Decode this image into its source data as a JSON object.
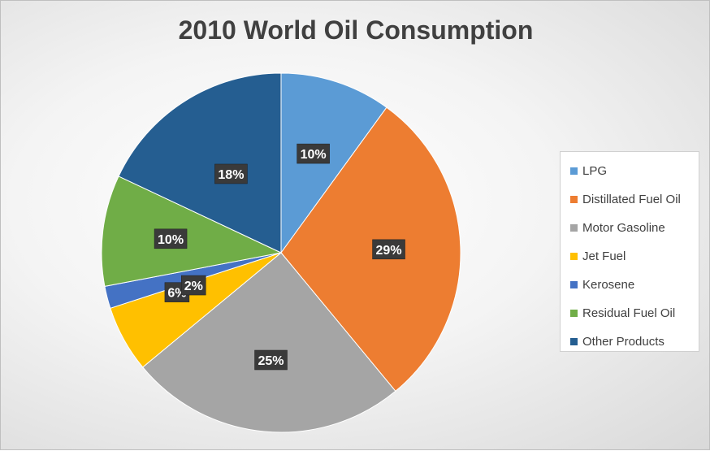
{
  "chart_data": {
    "type": "pie",
    "title": "2010 World Oil Consumption",
    "categories": [
      "LPG",
      "Distillated Fuel Oil",
      "Motor Gasoline",
      "Jet Fuel",
      "Kerosene",
      "Residual Fuel Oil",
      "Other Products"
    ],
    "values": [
      10,
      29,
      25,
      6,
      2,
      10,
      18
    ],
    "value_labels": [
      "10%",
      "29%",
      "25%",
      "6%",
      "2%",
      "10%",
      "18%"
    ],
    "unit": "%",
    "colors": [
      "#5B9BD5",
      "#ED7D31",
      "#A5A5A5",
      "#FFC000",
      "#4472C4",
      "#70AD47",
      "#255E91"
    ],
    "start_angle_deg": 0,
    "direction": "clockwise",
    "legend": "right"
  }
}
